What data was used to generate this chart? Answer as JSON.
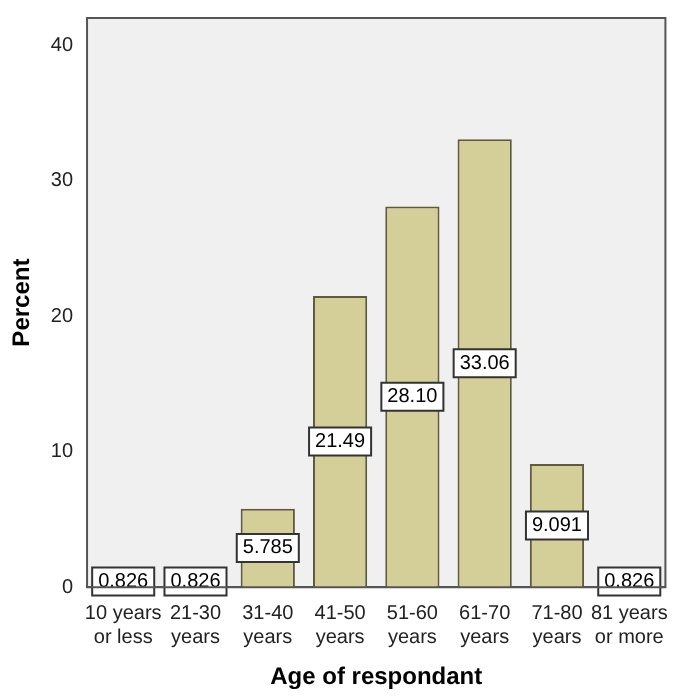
{
  "chart_data": {
    "type": "bar",
    "xlabel": "Age of respondant",
    "ylabel": "Percent",
    "categories": [
      "10 years or less",
      "21-30 years",
      "31-40 years",
      "41-50 years",
      "51-60 years",
      "61-70 years",
      "71-80 years",
      "81 years or more"
    ],
    "values": [
      0.826,
      0.826,
      5.785,
      21.49,
      28.1,
      33.06,
      9.091,
      0.826
    ],
    "value_labels": [
      "0.826",
      "0.826",
      "5.785",
      "21.49",
      "28.10",
      "33.06",
      "9.091",
      "0.826"
    ],
    "color": "#d4cf98",
    "ylim": [
      0,
      42
    ],
    "yticks": [
      0,
      10,
      20,
      30,
      40
    ],
    "grid": false,
    "legend": false
  }
}
